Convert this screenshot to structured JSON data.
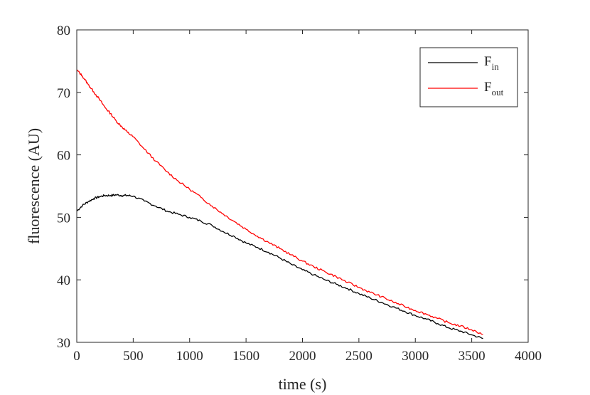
{
  "chart_data": {
    "type": "line",
    "xlabel": "time (s)",
    "ylabel": "fluorescence (AU)",
    "xlim": [
      0,
      4000
    ],
    "ylim": [
      30,
      80
    ],
    "x_ticks": [
      0,
      500,
      1000,
      1500,
      2000,
      2500,
      3000,
      3500,
      4000
    ],
    "y_ticks": [
      30,
      40,
      50,
      60,
      70,
      80
    ],
    "grid": false,
    "legend_position": "top-right",
    "series": [
      {
        "name": "F",
        "name_subscript": "in",
        "color": "#000000",
        "x": [
          0,
          50,
          100,
          150,
          200,
          250,
          300,
          350,
          400,
          450,
          500,
          600,
          700,
          800,
          900,
          1000,
          1100,
          1200,
          1300,
          1400,
          1500,
          1600,
          1700,
          1800,
          1900,
          2000,
          2100,
          2200,
          2300,
          2400,
          2500,
          2600,
          2700,
          2800,
          2900,
          3000,
          3100,
          3200,
          3300,
          3400,
          3500,
          3600
        ],
        "y": [
          51.0,
          51.9,
          52.5,
          53.0,
          53.3,
          53.5,
          53.5,
          53.6,
          53.5,
          53.5,
          53.4,
          52.6,
          51.8,
          51.0,
          50.5,
          50.0,
          49.4,
          48.7,
          47.7,
          46.9,
          45.9,
          45.2,
          44.4,
          43.5,
          42.5,
          41.6,
          40.8,
          40.0,
          39.3,
          38.6,
          37.8,
          37.1,
          36.4,
          35.7,
          35.0,
          34.3,
          33.7,
          33.0,
          32.3,
          31.8,
          31.2,
          30.6
        ]
      },
      {
        "name": "F",
        "name_subscript": "out",
        "color": "#ff0000",
        "x": [
          0,
          50,
          100,
          150,
          200,
          250,
          300,
          350,
          400,
          450,
          500,
          600,
          700,
          800,
          900,
          1000,
          1100,
          1200,
          1300,
          1400,
          1500,
          1600,
          1700,
          1800,
          1900,
          2000,
          2100,
          2200,
          2300,
          2400,
          2500,
          2600,
          2700,
          2800,
          2900,
          3000,
          3100,
          3200,
          3300,
          3400,
          3500,
          3600
        ],
        "y": [
          73.6,
          72.6,
          71.3,
          70.1,
          68.9,
          67.6,
          66.6,
          65.4,
          64.5,
          63.6,
          62.9,
          60.9,
          59.0,
          57.3,
          55.8,
          54.5,
          53.2,
          51.8,
          50.5,
          49.3,
          48.1,
          47.0,
          46.0,
          45.0,
          44.0,
          43.0,
          42.1,
          41.3,
          40.5,
          39.6,
          38.8,
          38.0,
          37.3,
          36.5,
          35.8,
          35.1,
          34.5,
          33.8,
          33.1,
          32.6,
          32.0,
          31.3
        ]
      }
    ]
  }
}
